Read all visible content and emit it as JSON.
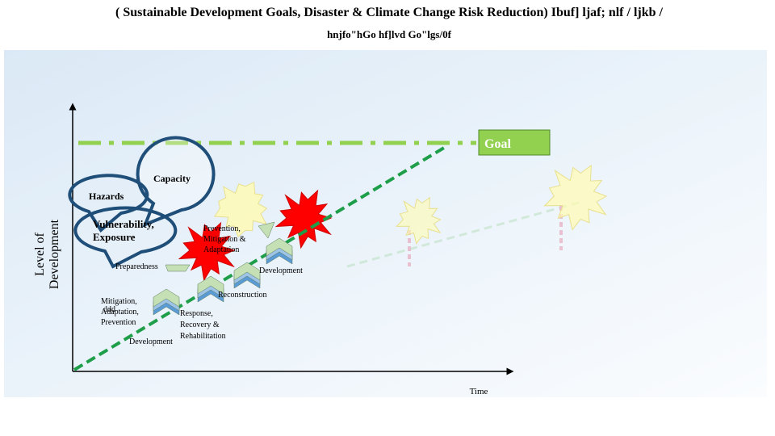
{
  "header": {
    "title_line1": "( Sustainable Development Goals, Disaster & Climate Change Risk Reduction) Ibuf] ljaf; nlf / ljkb /",
    "title_line2": "hnjfo\"hGo hf]lvd Go\"lgs/0f"
  },
  "y_axis_label": [
    "Level of",
    "Development"
  ],
  "x_axis_label": "Time",
  "goal": "Goal",
  "bubbles": {
    "capacity": "Capacity",
    "hazards": "Hazards",
    "vulnerability": [
      "Vulnerability,",
      "Exposure"
    ]
  },
  "labels": {
    "prevention": [
      "Prevention,",
      "Mitigation &",
      "Adaptation"
    ],
    "preparedness": "Preparedness",
    "development_upper": "Development",
    "reconstruction": "Reconstruction",
    "mitigation": [
      "Mitigation,",
      "Adaptation,",
      "Prevention"
    ],
    "overlap": "ddd",
    "response": [
      "Response,",
      "Recovery &",
      "Rehabilitation"
    ],
    "development_lower": "Development"
  }
}
